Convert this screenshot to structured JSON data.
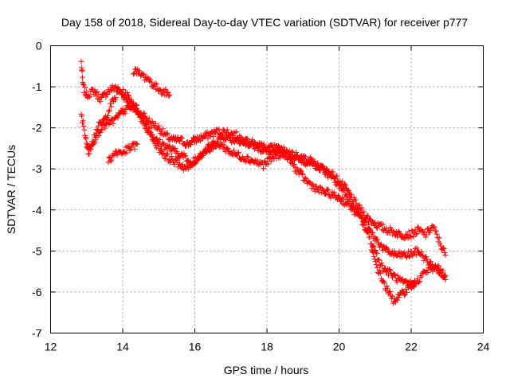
{
  "chart_data": {
    "type": "scatter",
    "title": "Day 158 of 2018, Sidereal Day-to-day VTEC variation (SDTVAR) for receiver p777",
    "xlabel": "GPS time / hours",
    "ylabel": "SDTVAR / TECUs",
    "xlim": [
      12,
      24
    ],
    "ylim": [
      -7,
      0
    ],
    "x_ticks": [
      12,
      14,
      16,
      18,
      20,
      22,
      24
    ],
    "y_ticks": [
      0,
      -1,
      -2,
      -3,
      -4,
      -5,
      -6,
      -7
    ],
    "grid": true,
    "marker": "+",
    "color": "#ff0000",
    "series": [
      {
        "name": "track-a",
        "x": [
          12.85,
          12.9,
          13.0,
          13.2,
          13.4,
          13.6,
          13.8,
          14.0,
          14.2,
          14.4,
          14.6,
          14.8,
          15.0,
          15.2,
          15.4,
          15.6,
          15.8,
          16.0,
          16.3,
          16.6,
          16.9,
          17.2,
          17.5,
          17.8,
          18.1,
          18.4,
          18.7,
          19.0,
          19.3,
          19.6,
          19.9,
          20.2,
          20.5,
          20.8,
          21.1,
          21.4,
          21.7,
          22.0,
          22.2,
          22.4,
          22.6,
          22.8,
          22.95
        ],
        "y": [
          -0.4,
          -1.0,
          -1.2,
          -1.1,
          -1.3,
          -1.1,
          -1.0,
          -1.2,
          -1.4,
          -1.6,
          -1.7,
          -1.9,
          -2.0,
          -2.2,
          -2.3,
          -2.3,
          -2.4,
          -2.3,
          -2.2,
          -2.1,
          -2.1,
          -2.2,
          -2.4,
          -2.5,
          -2.6,
          -2.6,
          -2.7,
          -2.8,
          -2.9,
          -3.0,
          -3.2,
          -3.5,
          -3.9,
          -4.2,
          -4.4,
          -4.5,
          -4.6,
          -4.6,
          -4.5,
          -4.6,
          -4.4,
          -4.8,
          -5.1
        ]
      },
      {
        "name": "track-b",
        "x": [
          12.85,
          12.95,
          13.05,
          13.3,
          13.5,
          13.7,
          13.9,
          14.1,
          14.3,
          14.5,
          14.7,
          14.9,
          15.1,
          15.3,
          15.5,
          15.7,
          15.9,
          16.2,
          16.5,
          16.8,
          17.1,
          17.4,
          17.7,
          18.0,
          18.3,
          18.6,
          18.9,
          19.2,
          19.5,
          19.8,
          20.1,
          20.4,
          20.7,
          21.0,
          21.3,
          21.6,
          21.9,
          22.2,
          22.5,
          22.8,
          22.95
        ],
        "y": [
          -1.7,
          -2.1,
          -2.6,
          -2.0,
          -1.8,
          -1.4,
          -1.1,
          -1.2,
          -1.4,
          -1.7,
          -2.0,
          -2.3,
          -2.4,
          -2.5,
          -2.6,
          -2.7,
          -2.9,
          -2.6,
          -2.4,
          -2.2,
          -2.3,
          -2.3,
          -2.4,
          -2.5,
          -2.5,
          -2.6,
          -2.7,
          -2.8,
          -3.0,
          -3.2,
          -3.5,
          -3.9,
          -4.3,
          -4.7,
          -5.0,
          -5.1,
          -5.1,
          -5.0,
          -5.3,
          -5.5,
          -5.7
        ]
      },
      {
        "name": "track-c",
        "x": [
          13.0,
          13.2,
          13.4,
          13.6,
          13.8,
          14.0,
          14.2,
          14.4,
          14.6,
          14.8,
          15.0,
          15.2,
          15.4,
          15.6,
          15.8,
          16.1,
          16.4,
          16.7,
          17.0,
          17.3,
          17.6,
          17.9,
          18.2,
          18.5,
          18.8,
          19.1,
          19.4,
          19.7,
          20.0,
          20.3,
          20.6,
          20.9,
          21.2,
          21.5,
          21.8,
          22.1,
          22.4,
          22.7,
          22.95
        ],
        "y": [
          -2.5,
          -2.3,
          -2.0,
          -1.9,
          -1.8,
          -1.6,
          -1.5,
          -1.6,
          -1.9,
          -2.2,
          -2.5,
          -2.7,
          -2.8,
          -2.9,
          -3.0,
          -2.7,
          -2.5,
          -2.4,
          -2.6,
          -2.7,
          -2.8,
          -2.9,
          -2.7,
          -2.6,
          -3.0,
          -3.3,
          -3.5,
          -3.6,
          -3.7,
          -3.9,
          -4.2,
          -4.8,
          -5.4,
          -5.6,
          -5.8,
          -5.8,
          -5.5,
          -5.4,
          -5.6
        ]
      },
      {
        "name": "track-d",
        "x": [
          14.3,
          14.5,
          14.7,
          14.9,
          15.1,
          15.3
        ],
        "y": [
          -0.6,
          -0.7,
          -0.8,
          -1.0,
          -1.1,
          -1.2
        ]
      },
      {
        "name": "track-e",
        "x": [
          13.6,
          13.8,
          14.0,
          14.2,
          14.4
        ],
        "y": [
          -2.8,
          -2.6,
          -2.6,
          -2.5,
          -2.4
        ]
      },
      {
        "name": "track-f",
        "x": [
          20.9,
          21.1,
          21.3,
          21.5,
          21.7,
          21.9,
          22.1
        ],
        "y": [
          -5.0,
          -5.5,
          -5.9,
          -6.2,
          -6.1,
          -5.9,
          -5.8
        ]
      }
    ]
  }
}
